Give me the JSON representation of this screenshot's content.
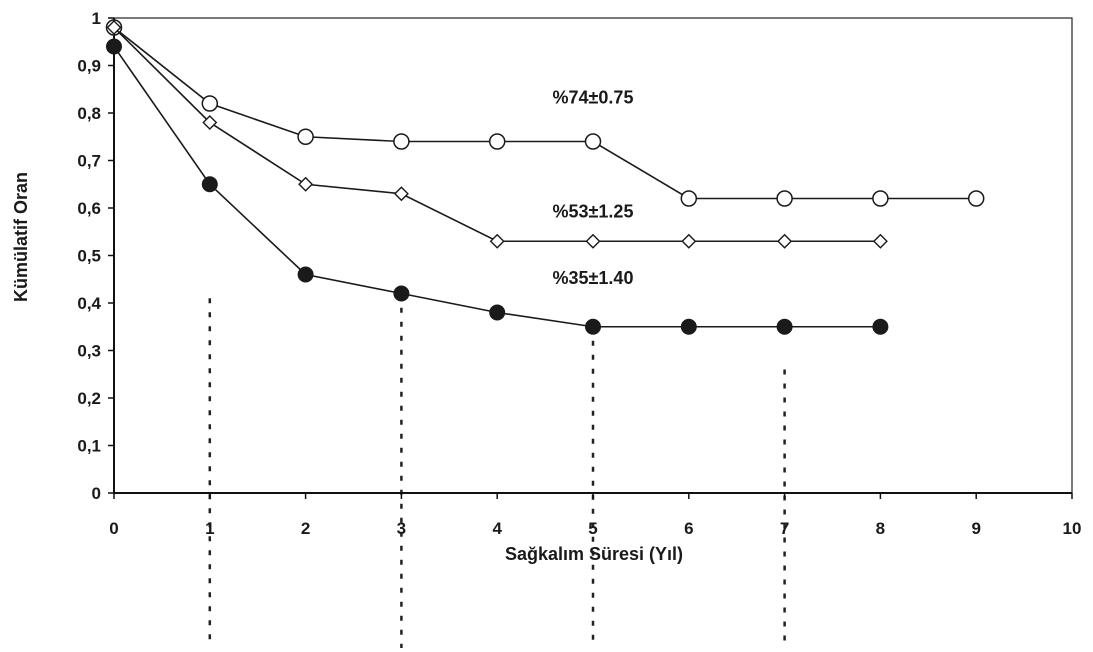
{
  "chart_data": {
    "type": "line",
    "xlabel": "Sağkalım Süresi (Yıl)",
    "ylabel": "Kümülatif Oran",
    "xlim": [
      0,
      10
    ],
    "ylim": [
      0,
      1
    ],
    "x_ticks": [
      "0",
      "1",
      "2",
      "3",
      "4",
      "5",
      "6",
      "7",
      "8",
      "9",
      "10"
    ],
    "y_ticks": [
      "0",
      "0,1",
      "0,2",
      "0,3",
      "0,4",
      "0,5",
      "0,6",
      "0,7",
      "0,8",
      "0,9",
      "1"
    ],
    "grid": false,
    "series": [
      {
        "marker": "open-circle",
        "x": [
          0,
          1,
          2,
          3,
          4,
          5,
          6,
          7,
          8,
          9
        ],
        "y": [
          0.98,
          0.82,
          0.75,
          0.74,
          0.74,
          0.74,
          0.62,
          0.62,
          0.62,
          0.62
        ]
      },
      {
        "marker": "open-diamond",
        "x": [
          0,
          1,
          2,
          3,
          4,
          5,
          6,
          7,
          8
        ],
        "y": [
          0.98,
          0.78,
          0.65,
          0.63,
          0.53,
          0.53,
          0.53,
          0.53,
          0.53
        ]
      },
      {
        "marker": "filled-circle",
        "x": [
          0,
          1,
          2,
          3,
          4,
          5,
          6,
          7,
          8
        ],
        "y": [
          0.94,
          0.65,
          0.46,
          0.42,
          0.38,
          0.35,
          0.35,
          0.35,
          0.35
        ]
      }
    ],
    "annotations": [
      {
        "text": "%74±0.75",
        "x": 5.0,
        "y": 0.82
      },
      {
        "text": "%53±1.25",
        "x": 5.0,
        "y": 0.58
      },
      {
        "text": "%35±1.40",
        "x": 5.0,
        "y": 0.44
      }
    ],
    "reference_lines": [
      {
        "x": 1,
        "y_top": 0.41
      },
      {
        "x": 3,
        "y_top": 0.39
      },
      {
        "x": 5,
        "y_top": 0.35
      },
      {
        "x": 7,
        "y_top": 0.26
      }
    ]
  }
}
